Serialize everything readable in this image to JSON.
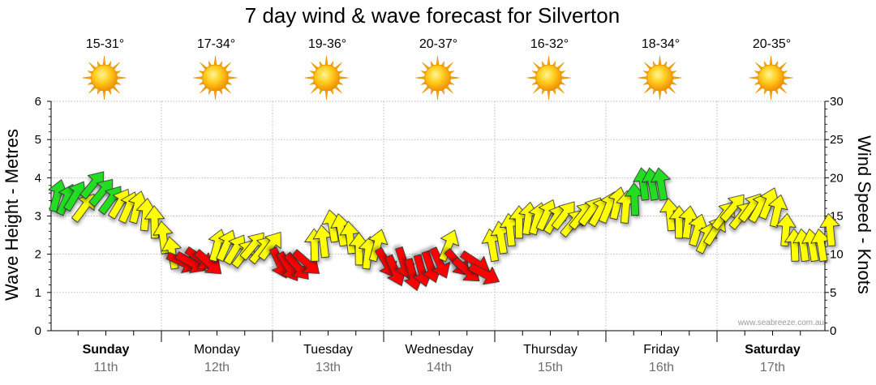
{
  "chart_data": {
    "type": "line",
    "title": "7 day wind & wave forecast for Silverton",
    "left_axis": {
      "label": "Wave Height - Metres",
      "min": 0,
      "max": 6,
      "ticks": [
        "0",
        "1",
        "2",
        "3",
        "4",
        "5",
        "6"
      ]
    },
    "right_axis": {
      "label": "Wind Speed - Knots",
      "min": 0,
      "max": 30,
      "ticks": [
        "0",
        "5",
        "10",
        "15",
        "20",
        "25",
        "30"
      ]
    },
    "days": [
      {
        "name": "Sunday",
        "date": "11th",
        "temp": "15-31°",
        "bold": true
      },
      {
        "name": "Monday",
        "date": "12th",
        "temp": "17-34°",
        "bold": false
      },
      {
        "name": "Tuesday",
        "date": "13th",
        "temp": "19-36°",
        "bold": false
      },
      {
        "name": "Wednesday",
        "date": "14th",
        "temp": "20-37°",
        "bold": false
      },
      {
        "name": "Thursday",
        "date": "15th",
        "temp": "16-32°",
        "bold": false
      },
      {
        "name": "Friday",
        "date": "16th",
        "temp": "18-34°",
        "bold": false
      },
      {
        "name": "Saturday",
        "date": "17th",
        "temp": "20-35°",
        "bold": true
      }
    ],
    "weather_icon": "sun-icon",
    "wind_series": {
      "name": "Wind speed (knots) with direction arrows",
      "day_offset": [
        0,
        0.08,
        0.16,
        0.24,
        0.32,
        0.4,
        0.48,
        0.56,
        0.64,
        0.72,
        0.8,
        0.88,
        0.96,
        1.04,
        1.12,
        1.2,
        1.28,
        1.36,
        1.44,
        1.52,
        1.6,
        1.68,
        1.76,
        1.84,
        1.92,
        2.0,
        2.08,
        2.16,
        2.24,
        2.32,
        2.4,
        2.48,
        2.56,
        2.64,
        2.72,
        2.8,
        2.88,
        2.96,
        3.04,
        3.12,
        3.2,
        3.28,
        3.36,
        3.44,
        3.52,
        3.6,
        3.68,
        3.76,
        3.84,
        3.92,
        4.0,
        4.08,
        4.16,
        4.24,
        4.32,
        4.4,
        4.48,
        4.56,
        4.64,
        4.72,
        4.8,
        4.88,
        4.96,
        5.04,
        5.12,
        5.2,
        5.28,
        5.36,
        5.44,
        5.52,
        5.6,
        5.68,
        5.76,
        5.84,
        5.92,
        6.0,
        6.08,
        6.16,
        6.24,
        6.32,
        6.4,
        6.48,
        6.56,
        6.64,
        6.72,
        6.8,
        6.88,
        6.96
      ],
      "knots": [
        17.5,
        17,
        17.5,
        16,
        19,
        18,
        17,
        16.5,
        16,
        16,
        15,
        14,
        12,
        10,
        9,
        9,
        9.5,
        9,
        11,
        11,
        10.5,
        10,
        11,
        10.5,
        11,
        9,
        8.5,
        8.5,
        9,
        11,
        11.5,
        13.5,
        13,
        12,
        10.5,
        10,
        11,
        9,
        8,
        9,
        7.5,
        8,
        8.5,
        9,
        11,
        9,
        8,
        9,
        7.5,
        11,
        12,
        13,
        14,
        14.5,
        14.5,
        15,
        14.5,
        15,
        14,
        15,
        15.5,
        15.5,
        16,
        16.5,
        16,
        17,
        19,
        19,
        19,
        15,
        14,
        14,
        13,
        12,
        13,
        15,
        16,
        15,
        16,
        16,
        16.5,
        15.5,
        13,
        11,
        11,
        11,
        11,
        13
      ]
    },
    "wave_series": {
      "name": "Wave height (metres)",
      "note": "no wave line shown"
    },
    "color_scale": [
      {
        "max_knots": 9.9,
        "color": "#ff0000"
      },
      {
        "max_knots": 16.9,
        "color": "#ffff00"
      },
      {
        "max_knots": 99,
        "color": "#22dd22"
      }
    ]
  },
  "watermark": "www.seabreeze.com.au"
}
